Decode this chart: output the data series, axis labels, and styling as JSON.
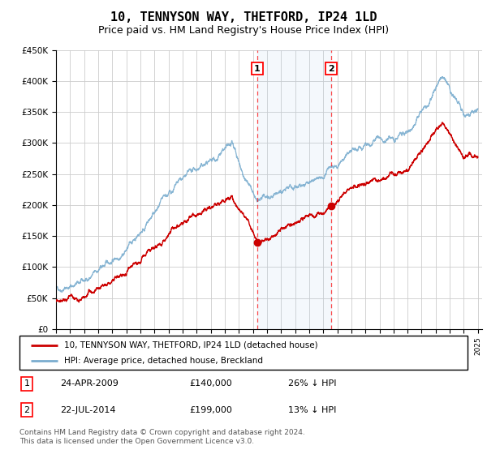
{
  "title": "10, TENNYSON WAY, THETFORD, IP24 1LD",
  "subtitle": "Price paid vs. HM Land Registry's House Price Index (HPI)",
  "title_fontsize": 11,
  "subtitle_fontsize": 9,
  "ylim": [
    0,
    450000
  ],
  "yticks": [
    0,
    50000,
    100000,
    150000,
    200000,
    250000,
    300000,
    350000,
    400000,
    450000
  ],
  "ytick_labels": [
    "£0",
    "£50K",
    "£100K",
    "£150K",
    "£200K",
    "£250K",
    "£300K",
    "£350K",
    "£400K",
    "£450K"
  ],
  "sale1_year": 2009.31,
  "sale1_price": 140000,
  "sale2_year": 2014.56,
  "sale2_price": 199000,
  "sale1_date": "24-APR-2009",
  "sale1_amount": "£140,000",
  "sale1_hpi_diff": "26% ↓ HPI",
  "sale2_date": "22-JUL-2014",
  "sale2_amount": "£199,000",
  "sale2_hpi_diff": "13% ↓ HPI",
  "property_color": "#cc0000",
  "hpi_color": "#7aadcf",
  "grid_color": "#cccccc",
  "legend_label_property": "10, TENNYSON WAY, THETFORD, IP24 1LD (detached house)",
  "legend_label_hpi": "HPI: Average price, detached house, Breckland",
  "footer": "Contains HM Land Registry data © Crown copyright and database right 2024.\nThis data is licensed under the Open Government Licence v3.0."
}
